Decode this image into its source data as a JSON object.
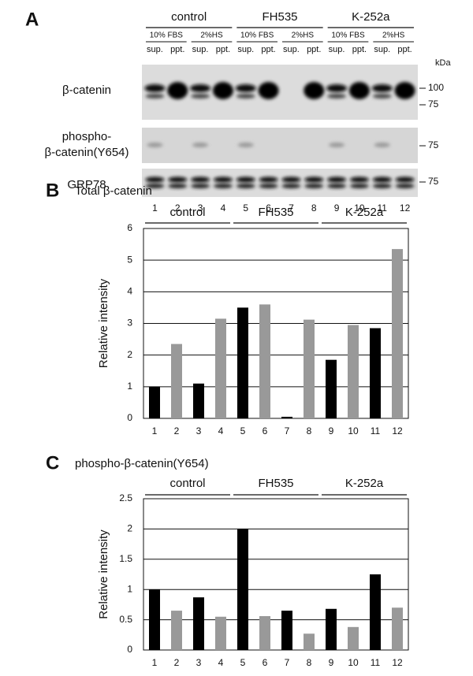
{
  "panel_a": {
    "label": "A",
    "groups": [
      "control",
      "FH535",
      "K-252a"
    ],
    "conditions": [
      "10% FBS",
      "2%HS",
      "10% FBS",
      "2%HS",
      "10% FBS",
      "2%HS"
    ],
    "fractions": [
      "sup.",
      "ppt.",
      "sup.",
      "ppt.",
      "sup.",
      "ppt.",
      "sup.",
      "ppt.",
      "sup.",
      "ppt.",
      "sup.",
      "ppt."
    ],
    "unit": "kDa",
    "rows": [
      {
        "label": [
          "β-catenin"
        ],
        "markers": [
          "100",
          "75"
        ]
      },
      {
        "label": [
          "phospho-",
          "β-catenin(Y654)"
        ],
        "markers": [
          "75"
        ]
      },
      {
        "label": [
          "GRP78"
        ],
        "markers": [
          "75"
        ]
      }
    ],
    "lanes": [
      "1",
      "2",
      "3",
      "4",
      "5",
      "6",
      "7",
      "8",
      "9",
      "10",
      "11",
      "12"
    ]
  },
  "chart_data": [
    {
      "type": "bar",
      "panel": "B",
      "title": "Total β-catenin",
      "groups": [
        "control",
        "FH535",
        "K-252a"
      ],
      "y_label": "Relative intensity",
      "categories": [
        "1",
        "2",
        "3",
        "4",
        "5",
        "6",
        "7",
        "8",
        "9",
        "10",
        "11",
        "12"
      ],
      "values": [
        1.0,
        2.35,
        1.1,
        3.15,
        3.5,
        3.6,
        0.05,
        3.12,
        1.85,
        2.95,
        2.85,
        5.35
      ],
      "colors": [
        "#000000",
        "#999999",
        "#000000",
        "#999999",
        "#000000",
        "#999999",
        "#000000",
        "#999999",
        "#000000",
        "#999999",
        "#000000",
        "#999999"
      ],
      "ylim": [
        0,
        6
      ],
      "yticks": [
        0,
        1,
        2,
        3,
        4,
        5,
        6
      ],
      "grid": true
    },
    {
      "type": "bar",
      "panel": "C",
      "title": "phospho-β-catenin(Y654)",
      "groups": [
        "control",
        "FH535",
        "K-252a"
      ],
      "y_label": "Relative intensity",
      "categories": [
        "1",
        "2",
        "3",
        "4",
        "5",
        "6",
        "7",
        "8",
        "9",
        "10",
        "11",
        "12"
      ],
      "values": [
        1.0,
        0.65,
        0.87,
        0.55,
        2.0,
        0.56,
        0.65,
        0.27,
        0.68,
        0.38,
        1.25,
        0.7
      ],
      "colors": [
        "#000000",
        "#999999",
        "#000000",
        "#999999",
        "#000000",
        "#999999",
        "#000000",
        "#999999",
        "#000000",
        "#999999",
        "#000000",
        "#999999"
      ],
      "ylim": [
        0,
        2.5
      ],
      "yticks": [
        0,
        0.5,
        1,
        1.5,
        2,
        2.5
      ],
      "grid": true
    }
  ]
}
